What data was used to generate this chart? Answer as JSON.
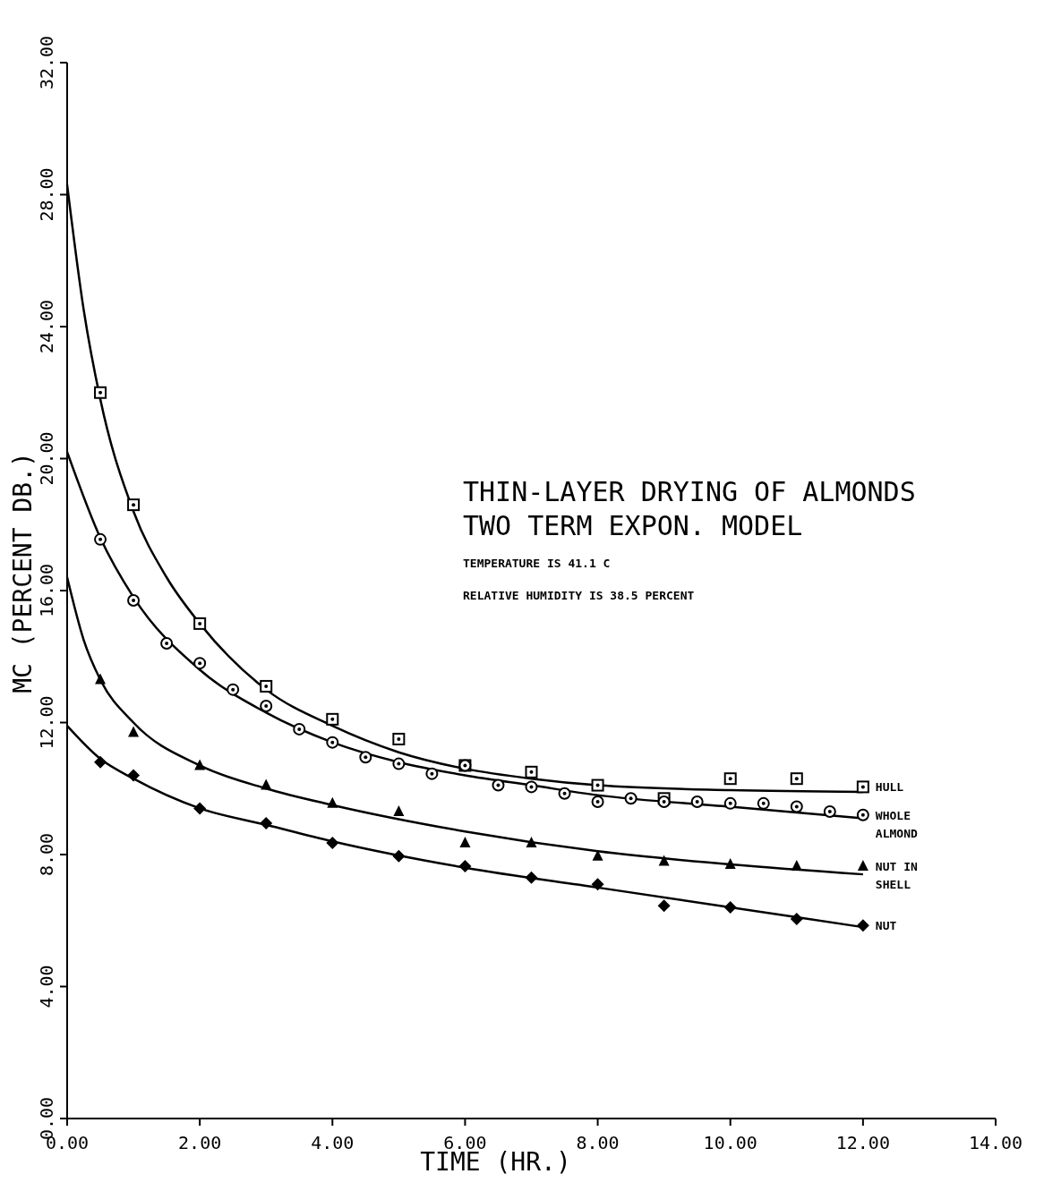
{
  "chart_data": {
    "type": "line",
    "title": "THIN-LAYER DRYING OF ALMONDS",
    "subtitle": "TWO TERM EXPON. MODEL",
    "annotations": [
      "TEMPERATURE IS 41.1 C",
      "RELATIVE HUMIDITY IS 38.5 PERCENT"
    ],
    "xlabel": "TIME (HR.)",
    "ylabel": "MC (PERCENT DB.)",
    "xlim": [
      0,
      14
    ],
    "ylim": [
      0,
      32
    ],
    "xticks": [
      {
        "value": 0,
        "label": "0.00"
      },
      {
        "value": 2,
        "label": "2.00"
      },
      {
        "value": 4,
        "label": "4.00"
      },
      {
        "value": 6,
        "label": "6.00"
      },
      {
        "value": 8,
        "label": "8.00"
      },
      {
        "value": 10,
        "label": "10.00"
      },
      {
        "value": 12,
        "label": "12.00"
      },
      {
        "value": 14,
        "label": "14.00"
      }
    ],
    "yticks": [
      {
        "value": 0,
        "label": "0.00"
      },
      {
        "value": 4,
        "label": "4.00"
      },
      {
        "value": 8,
        "label": "8.00"
      },
      {
        "value": 12,
        "label": "12.00"
      },
      {
        "value": 16,
        "label": "16.00"
      },
      {
        "value": 20,
        "label": "20.00"
      },
      {
        "value": 24,
        "label": "24.00"
      },
      {
        "value": 28,
        "label": "28.00"
      },
      {
        "value": 32,
        "label": "32.00"
      }
    ],
    "series": [
      {
        "color": "#000000",
        "x": [
          0,
          0.25,
          0.5,
          1,
          1.5,
          2,
          3,
          4,
          5,
          6,
          7,
          8,
          10,
          12
        ],
        "values": [
          28.3,
          24.5,
          21.8,
          18.4,
          16.4,
          15.0,
          13.0,
          11.9,
          11.1,
          10.6,
          10.3,
          10.1,
          9.95,
          9.9
        ]
      },
      {
        "color": "#000000",
        "x": [
          0,
          0.5,
          1,
          2,
          3,
          4,
          5,
          6,
          7,
          8,
          10,
          12
        ],
        "values": [
          20.2,
          17.6,
          15.8,
          13.6,
          12.3,
          11.4,
          10.8,
          10.4,
          10.1,
          9.8,
          9.45,
          9.1
        ]
      },
      {
        "color": "#000000",
        "x": [
          0,
          0.25,
          0.5,
          1,
          2,
          3,
          4,
          6,
          8,
          10,
          12
        ],
        "values": [
          16.4,
          14.5,
          13.3,
          12.0,
          10.7,
          10.0,
          9.5,
          8.7,
          8.1,
          7.7,
          7.4
        ]
      },
      {
        "color": "#000000",
        "x": [
          0,
          0.5,
          1,
          2,
          3,
          4,
          6,
          8,
          10,
          12
        ],
        "values": [
          11.9,
          10.9,
          10.3,
          9.4,
          8.9,
          8.4,
          7.6,
          7.0,
          6.4,
          5.8
        ]
      },
      {
        "type": "scatter",
        "name": "HULL",
        "color": "#000000",
        "marker": "square",
        "x": [
          0.5,
          1,
          2,
          3,
          4,
          5,
          6,
          7,
          8,
          9,
          10,
          11,
          12
        ],
        "values": [
          22.0,
          18.6,
          15.0,
          13.1,
          12.1,
          11.5,
          10.7,
          10.5,
          10.1,
          9.7,
          10.3,
          10.3,
          10.05
        ]
      },
      {
        "type": "scatter",
        "name": "WHOLE ALMOND",
        "color": "#000000",
        "marker": "circle",
        "x": [
          0.5,
          1,
          1.5,
          2,
          2.5,
          3,
          3.5,
          4,
          4.5,
          5,
          5.5,
          6,
          6.5,
          7,
          7.5,
          8,
          8.5,
          9,
          9.5,
          10,
          10.5,
          11,
          11.5,
          12
        ],
        "values": [
          17.55,
          15.7,
          14.4,
          13.8,
          13.0,
          12.5,
          11.8,
          11.4,
          10.95,
          10.75,
          10.45,
          10.7,
          10.1,
          10.05,
          9.85,
          9.6,
          9.7,
          9.6,
          9.6,
          9.55,
          9.55,
          9.45,
          9.3,
          9.2
        ]
      },
      {
        "type": "scatter",
        "name": "NUT IN SHELL",
        "color": "#000000",
        "marker": "triangle",
        "x": [
          0.5,
          1,
          2,
          3,
          4,
          5,
          6,
          7,
          8,
          9,
          10,
          11,
          12
        ],
        "values": [
          13.3,
          11.7,
          10.7,
          10.1,
          9.55,
          9.3,
          8.35,
          8.35,
          7.95,
          7.8,
          7.7,
          7.65,
          7.65
        ]
      },
      {
        "type": "scatter",
        "name": "NUT",
        "color": "#000000",
        "marker": "diamond",
        "x": [
          0.5,
          1,
          2,
          3,
          4,
          5,
          6,
          7,
          8,
          9,
          10,
          11,
          12
        ],
        "values": [
          10.8,
          10.4,
          9.4,
          8.95,
          8.35,
          7.95,
          7.65,
          7.3,
          7.1,
          6.45,
          6.4,
          6.05,
          5.85
        ]
      }
    ]
  }
}
